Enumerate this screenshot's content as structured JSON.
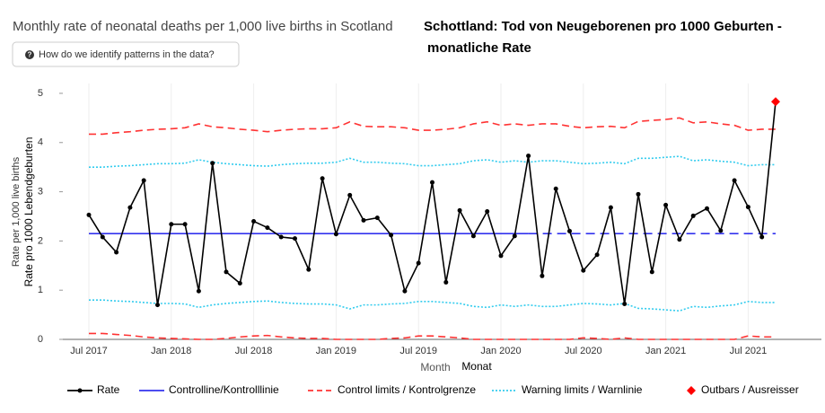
{
  "header": {
    "title": "Monthly rate of neonatal deaths per 1,000 live births in Scotland",
    "button": "How do we identify patterns in the data?",
    "title_de": [
      "Schottland: Tod von Neugeborenen pro 1000 Geburten -",
      "monatliche Rate"
    ]
  },
  "chart_data": {
    "type": "line",
    "y_label": [
      "Rate per 1,000 live births",
      "Rate pro 1000 Lebendgeburten"
    ],
    "x_label": [
      "Month",
      "Monat"
    ],
    "x": [
      "2017-07",
      "2017-08",
      "2017-09",
      "2017-10",
      "2017-11",
      "2017-12",
      "2018-01",
      "2018-02",
      "2018-03",
      "2018-04",
      "2018-05",
      "2018-06",
      "2018-07",
      "2018-08",
      "2018-09",
      "2018-10",
      "2018-11",
      "2018-12",
      "2019-01",
      "2019-02",
      "2019-03",
      "2019-04",
      "2019-05",
      "2019-06",
      "2019-07",
      "2019-08",
      "2019-09",
      "2019-10",
      "2019-11",
      "2019-12",
      "2020-01",
      "2020-02",
      "2020-03",
      "2020-04",
      "2020-05",
      "2020-06",
      "2020-07",
      "2020-08",
      "2020-09",
      "2020-10",
      "2020-11",
      "2020-12",
      "2021-01",
      "2021-02",
      "2021-03",
      "2021-04",
      "2021-05",
      "2021-06",
      "2021-07",
      "2021-08",
      "2021-09"
    ],
    "xticks": [
      {
        "value": "2017-07",
        "label": "Jul 2017"
      },
      {
        "value": "2018-01",
        "label": "Jan 2018"
      },
      {
        "value": "2018-07",
        "label": "Jul 2018"
      },
      {
        "value": "2019-01",
        "label": "Jan 2019"
      },
      {
        "value": "2019-07",
        "label": "Jul 2019"
      },
      {
        "value": "2020-01",
        "label": "Jan 2020"
      },
      {
        "value": "2020-07",
        "label": "Jul 2020"
      },
      {
        "value": "2021-01",
        "label": "Jan 2021"
      },
      {
        "value": "2021-07",
        "label": "Jul 2021"
      }
    ],
    "ylim": [
      0,
      5.2
    ],
    "yticks": [
      0,
      1,
      2,
      3,
      4,
      5
    ],
    "grid": true,
    "series": [
      {
        "name": "Rate",
        "color": "#000000",
        "values": [
          2.53,
          2.08,
          1.77,
          2.68,
          3.23,
          0.7,
          2.34,
          2.34,
          0.98,
          3.58,
          1.37,
          1.14,
          2.4,
          2.27,
          2.08,
          2.05,
          1.42,
          3.27,
          2.14,
          2.93,
          2.42,
          2.47,
          2.12,
          0.98,
          1.55,
          3.19,
          1.16,
          2.62,
          2.1,
          2.6,
          1.7,
          2.1,
          3.73,
          1.29,
          3.06,
          2.2,
          1.4,
          1.72,
          2.68,
          0.72,
          2.95,
          1.37,
          2.73,
          2.03,
          2.51,
          2.66,
          2.21,
          3.23,
          2.69,
          2.08,
          4.83
        ]
      },
      {
        "name": "Controlline/Kontrolllinie",
        "color": "#3333ee",
        "value": 2.15,
        "dashed_from": "2020-03"
      },
      {
        "name": "Control limits / Kontrolgrenze",
        "color": "#ff3333",
        "upper": [
          4.17,
          4.17,
          4.2,
          4.22,
          4.25,
          4.27,
          4.28,
          4.3,
          4.38,
          4.32,
          4.3,
          4.27,
          4.25,
          4.22,
          4.25,
          4.27,
          4.28,
          4.28,
          4.3,
          4.42,
          4.33,
          4.32,
          4.32,
          4.3,
          4.25,
          4.25,
          4.27,
          4.3,
          4.38,
          4.42,
          4.35,
          4.38,
          4.35,
          4.38,
          4.38,
          4.33,
          4.3,
          4.32,
          4.33,
          4.3,
          4.43,
          4.45,
          4.47,
          4.5,
          4.4,
          4.42,
          4.38,
          4.35,
          4.25,
          4.27,
          4.27
        ],
        "lower": [
          0.12,
          0.12,
          0.1,
          0.08,
          0.05,
          0.03,
          0.02,
          0.01,
          0,
          0,
          0.02,
          0.05,
          0.07,
          0.08,
          0.05,
          0.03,
          0.02,
          0.02,
          0,
          0,
          0,
          0,
          0.02,
          0.03,
          0.07,
          0.07,
          0.05,
          0.03,
          0,
          0,
          0,
          0,
          0,
          0,
          0,
          0,
          0.03,
          0.02,
          0,
          0.03,
          0,
          0,
          0,
          0,
          0,
          0,
          0,
          0,
          0.07,
          0.05,
          0.05
        ]
      },
      {
        "name": "Warning limits / Warnlinie",
        "color": "#33ccee",
        "upper": [
          3.5,
          3.5,
          3.52,
          3.53,
          3.55,
          3.57,
          3.57,
          3.58,
          3.65,
          3.6,
          3.57,
          3.55,
          3.53,
          3.52,
          3.55,
          3.57,
          3.58,
          3.58,
          3.6,
          3.68,
          3.6,
          3.6,
          3.58,
          3.57,
          3.53,
          3.53,
          3.55,
          3.57,
          3.63,
          3.65,
          3.6,
          3.63,
          3.6,
          3.63,
          3.63,
          3.6,
          3.57,
          3.58,
          3.6,
          3.57,
          3.68,
          3.68,
          3.7,
          3.72,
          3.63,
          3.65,
          3.62,
          3.6,
          3.53,
          3.55,
          3.55
        ],
        "lower": [
          0.8,
          0.8,
          0.78,
          0.77,
          0.75,
          0.73,
          0.73,
          0.72,
          0.65,
          0.7,
          0.73,
          0.75,
          0.77,
          0.78,
          0.75,
          0.73,
          0.72,
          0.72,
          0.7,
          0.62,
          0.7,
          0.7,
          0.72,
          0.73,
          0.77,
          0.77,
          0.75,
          0.73,
          0.67,
          0.65,
          0.7,
          0.67,
          0.7,
          0.67,
          0.67,
          0.7,
          0.73,
          0.72,
          0.7,
          0.73,
          0.63,
          0.62,
          0.6,
          0.58,
          0.67,
          0.65,
          0.68,
          0.7,
          0.77,
          0.75,
          0.75
        ]
      },
      {
        "name": "Outbars / Ausreisser",
        "color": "#ff0000",
        "x": [
          "2021-09"
        ],
        "values": [
          4.83
        ]
      }
    ]
  }
}
